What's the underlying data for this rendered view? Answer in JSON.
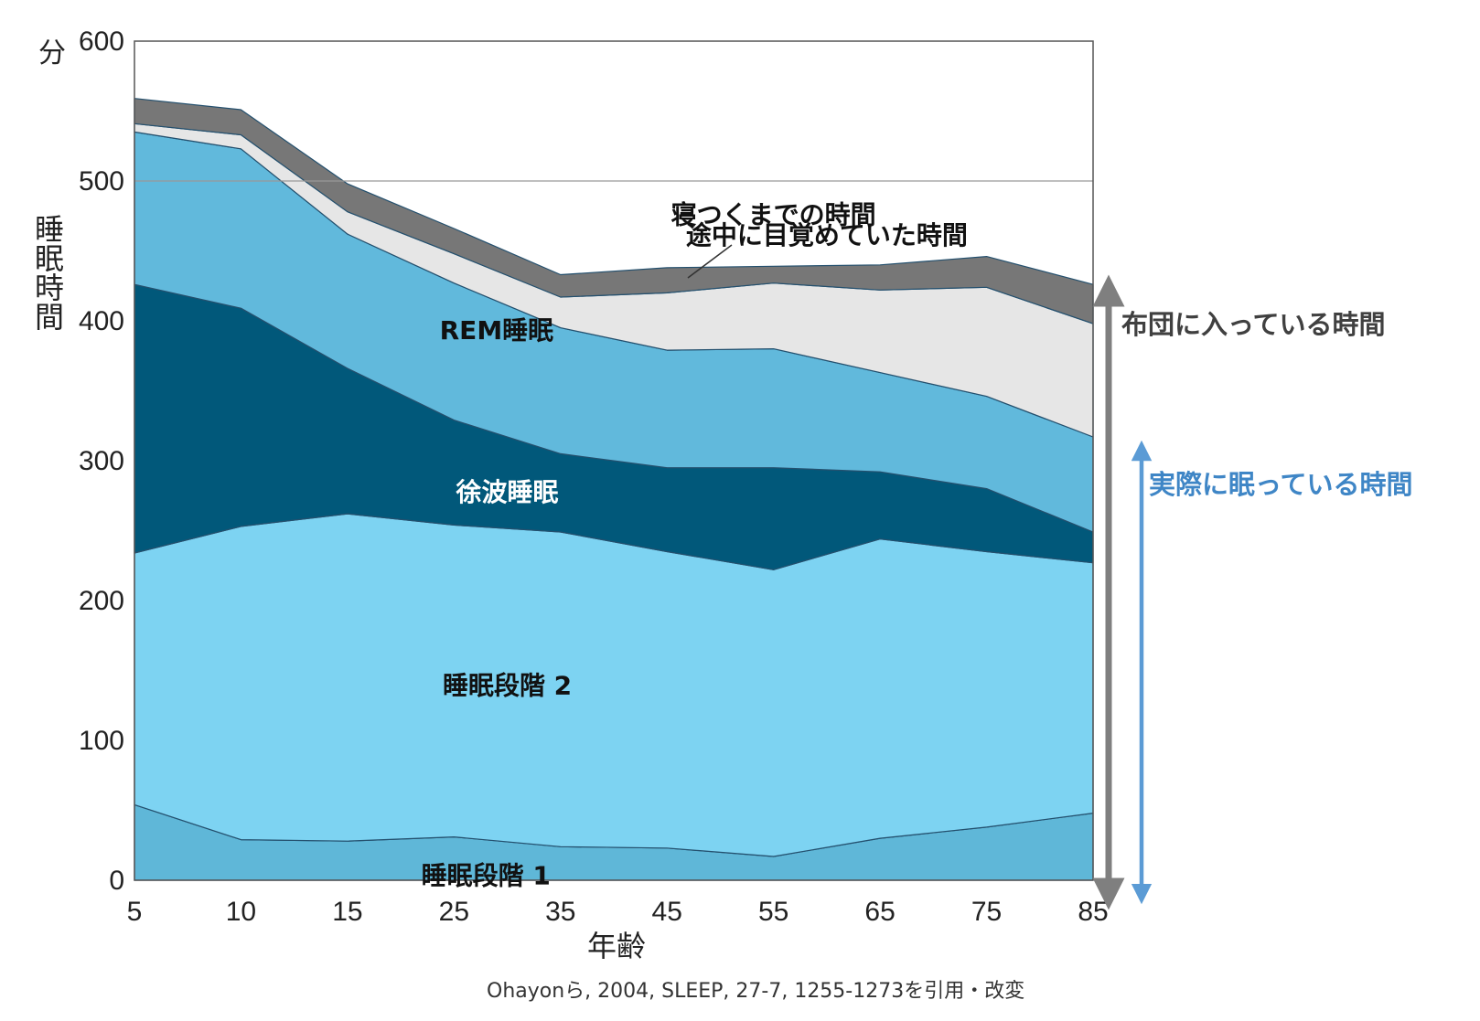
{
  "chart_data": {
    "type": "area",
    "stacked": true,
    "x": [
      5,
      10,
      15,
      25,
      35,
      45,
      55,
      65,
      75,
      85
    ],
    "x_tick_labels": [
      "5",
      "10",
      "15",
      "25",
      "35",
      "45",
      "55",
      "65",
      "75",
      "85"
    ],
    "y_unit": "分",
    "y_tick_labels": [
      "0",
      "100",
      "200",
      "300",
      "400",
      "500",
      "600"
    ],
    "ylim": [
      0,
      600
    ],
    "xlabel": "年齢",
    "ylabel": "睡眠時間",
    "series": [
      {
        "name": "睡眠段階 1",
        "color": "#5fb7d8",
        "text_color": "#111111",
        "values": [
          54,
          29,
          28,
          31,
          24,
          23,
          17,
          30,
          38,
          48
        ]
      },
      {
        "name": "睡眠段階 2",
        "color": "#7dd3f2",
        "text_color": "#111111",
        "values": [
          180,
          224,
          234,
          223,
          225,
          212,
          205,
          214,
          197,
          179
        ]
      },
      {
        "name": "徐波睡眠",
        "color": "#01587a",
        "text_color": "#ffffff",
        "values": [
          192,
          156,
          104,
          75,
          56,
          60,
          73,
          48,
          45,
          22
        ]
      },
      {
        "name": "REM睡眠",
        "color": "#61b9dc",
        "text_color": "#111111",
        "values": [
          109,
          114,
          96,
          98,
          90,
          84,
          85,
          71,
          66,
          68
        ]
      },
      {
        "name": "途中に目覚めていた時間",
        "color": "#e6e6e6",
        "text_color": "#111111",
        "values": [
          6,
          10,
          16,
          21,
          22,
          41,
          47,
          59,
          78,
          81
        ]
      },
      {
        "name": "寝つくまでの時間",
        "color": "#777777",
        "text_color": "#111111",
        "values": [
          18,
          18,
          20,
          18,
          16,
          18,
          12,
          18,
          22,
          28
        ]
      }
    ],
    "annotations": {
      "time_in_bed": {
        "label": "布団に入っている時間",
        "color": "#7f7f7f"
      },
      "actual_sleep": {
        "label": "実際に眠っている時間",
        "color": "#5b9bd5"
      }
    },
    "gridline_at": 500,
    "source": "Ohayonら, 2004, SLEEP, 27-7, 1255-1273を引用・改変"
  }
}
